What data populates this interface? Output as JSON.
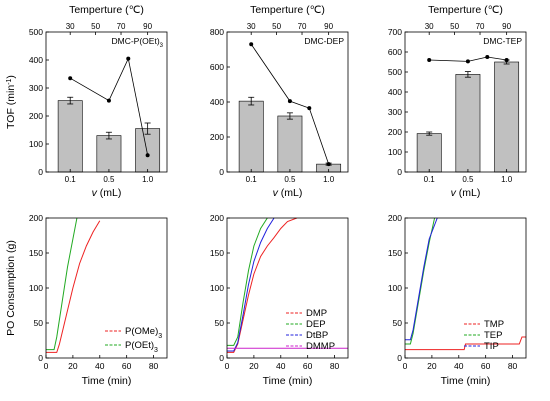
{
  "figure": {
    "ylabel_top_prefix": "TOF (min",
    "ylabel_top_exp": "-1",
    "ylabel_top_suffix": ")",
    "xlabel_top_var": "v",
    "xlabel_top_unit": " (mL)",
    "toplabel": "Temperture (",
    "toplabel_unit": "℃)",
    "ylabel_bottom": "PO Consumption (g)",
    "xlabel_bottom": "Time (min)"
  },
  "chart_data": [
    {
      "type": "bar",
      "panel": "top-left",
      "title": "DMC-P(OEt)",
      "title_sub": "3",
      "categories": [
        "0.1",
        "0.5",
        "1.0"
      ],
      "values": [
        255,
        130,
        155
      ],
      "errors": [
        12,
        12,
        20
      ],
      "ylim": [
        0,
        500
      ],
      "yticks": [
        0,
        100,
        200,
        300,
        400,
        500
      ],
      "temperature_ticks": [
        30,
        50,
        70,
        90
      ],
      "tof_points": [
        [
          0.1,
          335
        ],
        [
          0.5,
          255
        ],
        [
          0.7,
          405
        ],
        [
          1.0,
          60
        ]
      ]
    },
    {
      "type": "bar",
      "panel": "top-middle",
      "title": "DMC-DEP",
      "categories": [
        "0.1",
        "0.5",
        "1.0"
      ],
      "values": [
        405,
        320,
        45
      ],
      "errors": [
        22,
        18,
        6
      ],
      "ylim": [
        0,
        800
      ],
      "yticks": [
        0,
        200,
        400,
        600,
        800
      ],
      "temperature_ticks": [
        30,
        50,
        70,
        90
      ],
      "tof_points": [
        [
          0.1,
          730
        ],
        [
          0.5,
          405
        ],
        [
          0.7,
          365
        ],
        [
          1.0,
          45
        ]
      ]
    },
    {
      "type": "bar",
      "panel": "top-right",
      "title": "DMC-TEP",
      "categories": [
        "0.1",
        "0.5",
        "1.0"
      ],
      "values": [
        192,
        488,
        550
      ],
      "errors": [
        8,
        14,
        10
      ],
      "ylim": [
        0,
        700
      ],
      "yticks": [
        0,
        100,
        200,
        300,
        400,
        500,
        600,
        700
      ],
      "temperature_ticks": [
        30,
        50,
        70,
        90
      ],
      "tof_points": [
        [
          0.1,
          560
        ],
        [
          0.5,
          553
        ],
        [
          0.7,
          575
        ],
        [
          1.0,
          560
        ]
      ]
    },
    {
      "type": "line",
      "panel": "bottom-left",
      "xlim": [
        0,
        90
      ],
      "ylim": [
        0,
        200
      ],
      "xticks": [
        0,
        20,
        40,
        60,
        80
      ],
      "yticks": [
        0,
        50,
        100,
        150,
        200
      ],
      "legend": "bottom-right",
      "series": [
        {
          "name": "P(OMe)",
          "name_sub": "3",
          "color": "#ee2222",
          "points": [
            [
              0,
              8
            ],
            [
              8,
              8
            ],
            [
              10,
              20
            ],
            [
              15,
              60
            ],
            [
              20,
              100
            ],
            [
              25,
              135
            ],
            [
              30,
              160
            ],
            [
              35,
              180
            ],
            [
              40,
              196
            ]
          ]
        },
        {
          "name": "P(OEt)",
          "name_sub": "3",
          "color": "#22aa22",
          "points": [
            [
              0,
              12
            ],
            [
              6,
              12
            ],
            [
              8,
              30
            ],
            [
              12,
              80
            ],
            [
              16,
              130
            ],
            [
              20,
              170
            ],
            [
              23,
              200
            ]
          ]
        }
      ]
    },
    {
      "type": "line",
      "panel": "bottom-middle",
      "xlim": [
        0,
        90
      ],
      "ylim": [
        0,
        200
      ],
      "xticks": [
        0,
        20,
        40,
        60,
        80
      ],
      "yticks": [
        0,
        50,
        100,
        150,
        200
      ],
      "legend": "bottom-right",
      "series": [
        {
          "name": "DMP",
          "color": "#ee2222",
          "points": [
            [
              0,
              8
            ],
            [
              5,
              8
            ],
            [
              8,
              20
            ],
            [
              12,
              55
            ],
            [
              16,
              90
            ],
            [
              20,
              120
            ],
            [
              25,
              145
            ],
            [
              30,
              160
            ],
            [
              35,
              172
            ],
            [
              40,
              185
            ],
            [
              45,
              195
            ],
            [
              52,
              200
            ]
          ]
        },
        {
          "name": "DEP",
          "color": "#22aa22",
          "points": [
            [
              0,
              18
            ],
            [
              5,
              18
            ],
            [
              8,
              30
            ],
            [
              12,
              80
            ],
            [
              16,
              125
            ],
            [
              20,
              160
            ],
            [
              25,
              185
            ],
            [
              30,
              200
            ]
          ]
        },
        {
          "name": "DtBP",
          "color": "#2222dd",
          "points": [
            [
              0,
              10
            ],
            [
              5,
              10
            ],
            [
              8,
              22
            ],
            [
              12,
              62
            ],
            [
              16,
              105
            ],
            [
              20,
              138
            ],
            [
              25,
              165
            ],
            [
              30,
              185
            ],
            [
              35,
              200
            ]
          ]
        },
        {
          "name": "DMMP",
          "color": "#cc22cc",
          "points": [
            [
              0,
              14
            ],
            [
              90,
              14
            ]
          ]
        }
      ]
    },
    {
      "type": "line",
      "panel": "bottom-right",
      "xlim": [
        0,
        90
      ],
      "ylim": [
        0,
        200
      ],
      "xticks": [
        0,
        20,
        40,
        60,
        80
      ],
      "yticks": [
        0,
        50,
        100,
        150,
        200
      ],
      "legend": "bottom-right",
      "series": [
        {
          "name": "TMP",
          "color": "#ee2222",
          "points": [
            [
              0,
              12
            ],
            [
              44,
              12
            ],
            [
              45,
              20
            ],
            [
              85,
              20
            ],
            [
              87,
              30
            ],
            [
              90,
              30
            ]
          ]
        },
        {
          "name": "TEP",
          "color": "#22aa22",
          "points": [
            [
              0,
              20
            ],
            [
              4,
              20
            ],
            [
              6,
              35
            ],
            [
              10,
              80
            ],
            [
              14,
              125
            ],
            [
              18,
              165
            ],
            [
              22,
              200
            ]
          ]
        },
        {
          "name": "TIP",
          "color": "#2222dd",
          "points": [
            [
              0,
              26
            ],
            [
              4,
              26
            ],
            [
              6,
              40
            ],
            [
              10,
              85
            ],
            [
              14,
              130
            ],
            [
              18,
              170
            ],
            [
              24,
              200
            ]
          ]
        }
      ]
    }
  ]
}
